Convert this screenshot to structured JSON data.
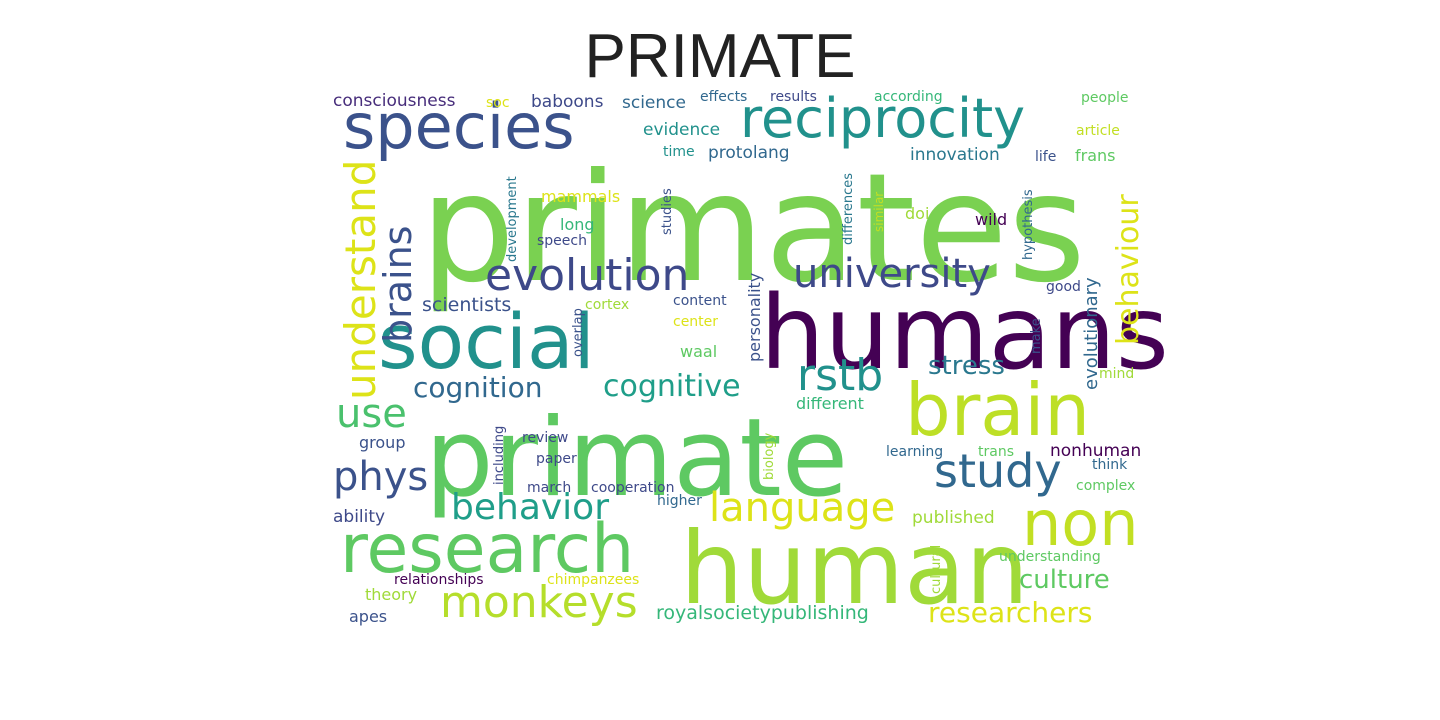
{
  "title": "PRIMATE",
  "palette": {
    "dark_purple": "#440154",
    "indigo": "#3b528b",
    "teal": "#21918c",
    "green": "#5ec962",
    "light_green": "#7ad151",
    "lime": "#b5de2b",
    "yellow": "#dde318"
  },
  "words": [
    {
      "text": "primates",
      "color": "#7ad151"
    },
    {
      "text": "humans",
      "color": "#440154"
    },
    {
      "text": "primate",
      "color": "#5ec962"
    },
    {
      "text": "human",
      "color": "#a0da39"
    },
    {
      "text": "social",
      "color": "#21918c"
    },
    {
      "text": "research",
      "color": "#5ec962"
    },
    {
      "text": "species",
      "color": "#3b528b"
    },
    {
      "text": "brain",
      "color": "#bddf26"
    },
    {
      "text": "reciprocity",
      "color": "#21918c"
    },
    {
      "text": "non",
      "color": "#c2df23"
    },
    {
      "text": "evolution",
      "color": "#3e4989"
    },
    {
      "text": "university",
      "color": "#3e4989"
    },
    {
      "text": "monkeys",
      "color": "#b5de2b"
    },
    {
      "text": "study",
      "color": "#31688e"
    },
    {
      "text": "language",
      "color": "#dde318"
    },
    {
      "text": "behavior",
      "color": "#1f9e89"
    },
    {
      "text": "understand",
      "color": "#dde318"
    },
    {
      "text": "brains",
      "color": "#3b528b"
    },
    {
      "text": "rstb",
      "color": "#21918c"
    },
    {
      "text": "phys",
      "color": "#3b528b"
    },
    {
      "text": "use",
      "color": "#4ac16d"
    },
    {
      "text": "cognitive",
      "color": "#1f9e89"
    },
    {
      "text": "cognition",
      "color": "#31688e"
    },
    {
      "text": "behaviour",
      "color": "#dde318"
    },
    {
      "text": "researchers",
      "color": "#dde318"
    },
    {
      "text": "culture",
      "color": "#5ec962"
    },
    {
      "text": "stress",
      "color": "#2a788e"
    },
    {
      "text": "royalsocietypublishing",
      "color": "#35b779"
    },
    {
      "text": "evolutionary",
      "color": "#31688e"
    },
    {
      "text": "scientists",
      "color": "#3b528b"
    },
    {
      "text": "consciousness",
      "color": "#472d7b"
    },
    {
      "text": "baboons",
      "color": "#3e4989"
    },
    {
      "text": "science",
      "color": "#31688e"
    },
    {
      "text": "innovation",
      "color": "#2a788e"
    },
    {
      "text": "protolang",
      "color": "#31688e"
    },
    {
      "text": "evidence",
      "color": "#21918c"
    },
    {
      "text": "personality",
      "color": "#3b528b"
    },
    {
      "text": "published",
      "color": "#a0da39"
    },
    {
      "text": "nonhuman",
      "color": "#440154"
    },
    {
      "text": "ability",
      "color": "#3e4989"
    },
    {
      "text": "mammals",
      "color": "#dde318"
    },
    {
      "text": "long",
      "color": "#35b779"
    },
    {
      "text": "waal",
      "color": "#5ec962"
    },
    {
      "text": "different",
      "color": "#35b779"
    },
    {
      "text": "group",
      "color": "#3b528b"
    },
    {
      "text": "theory",
      "color": "#a0da39"
    },
    {
      "text": "apes",
      "color": "#3b528b"
    },
    {
      "text": "frans",
      "color": "#5ec962"
    },
    {
      "text": "doi",
      "color": "#a0da39"
    },
    {
      "text": "wild",
      "color": "#440154"
    },
    {
      "text": "relationships",
      "color": "#440154"
    },
    {
      "text": "chimpanzees",
      "color": "#dde318"
    },
    {
      "text": "cooperation",
      "color": "#3e4989"
    },
    {
      "text": "march",
      "color": "#3e4989"
    },
    {
      "text": "paper",
      "color": "#3e4989"
    },
    {
      "text": "review",
      "color": "#3e4989"
    },
    {
      "text": "higher",
      "color": "#31688e"
    },
    {
      "text": "including",
      "color": "#3e4989"
    },
    {
      "text": "biology",
      "color": "#a0da39"
    },
    {
      "text": "cultural",
      "color": "#a0da39"
    },
    {
      "text": "understanding",
      "color": "#5ec962"
    },
    {
      "text": "learning",
      "color": "#31688e"
    },
    {
      "text": "trans",
      "color": "#5ec962"
    },
    {
      "text": "think",
      "color": "#31688e"
    },
    {
      "text": "complex",
      "color": "#5ec962"
    },
    {
      "text": "mind",
      "color": "#a0da39"
    },
    {
      "text": "good",
      "color": "#3e4989"
    },
    {
      "text": "make",
      "color": "#3b528b"
    },
    {
      "text": "content",
      "color": "#3b528b"
    },
    {
      "text": "center",
      "color": "#dde318"
    },
    {
      "text": "overlap",
      "color": "#3b528b"
    },
    {
      "text": "cortex",
      "color": "#a0da39"
    },
    {
      "text": "effects",
      "color": "#31688e"
    },
    {
      "text": "results",
      "color": "#3e4989"
    },
    {
      "text": "according",
      "color": "#35b779"
    },
    {
      "text": "people",
      "color": "#5ec962"
    },
    {
      "text": "article",
      "color": "#c2df23"
    },
    {
      "text": "life",
      "color": "#3b528b"
    },
    {
      "text": "soc",
      "color": "#dde318"
    },
    {
      "text": "time",
      "color": "#21918c"
    },
    {
      "text": "development",
      "color": "#2a788e"
    },
    {
      "text": "studies",
      "color": "#3b528b"
    },
    {
      "text": "differences",
      "color": "#2a788e"
    },
    {
      "text": "similar",
      "color": "#c2df23"
    },
    {
      "text": "hypothesis",
      "color": "#31688e"
    },
    {
      "text": "speech",
      "color": "#3e4989"
    }
  ]
}
